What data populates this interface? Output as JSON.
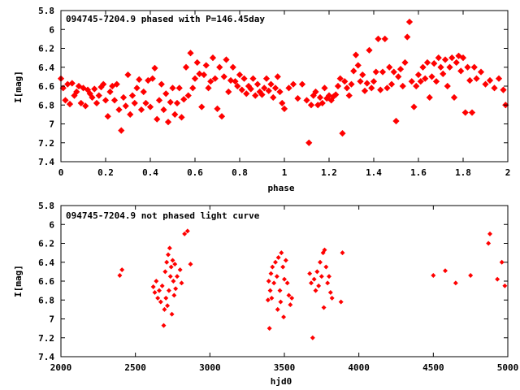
{
  "chart_data": [
    {
      "type": "scatter",
      "title": "094745-7204.9 phased with P=146.45day",
      "xlabel": "phase",
      "ylabel": "I[mag]",
      "xlim": [
        0,
        2
      ],
      "ylim": [
        7.4,
        5.8
      ],
      "y_inverted": true,
      "xticks": [
        "0",
        "0.2",
        "0.4",
        "0.6",
        "0.8",
        "1",
        "1.2",
        "1.4",
        "1.6",
        "1.8",
        "2"
      ],
      "yticks": [
        "5.8",
        "6",
        "6.2",
        "6.4",
        "6.6",
        "6.8",
        "7",
        "7.2",
        "7.4"
      ],
      "grid": false,
      "marker_color": "#ff0000",
      "series": [
        {
          "points": [
            [
              0.0,
              6.52
            ],
            [
              0.01,
              6.62
            ],
            [
              0.02,
              6.75
            ],
            [
              0.03,
              6.58
            ],
            [
              0.04,
              6.79
            ],
            [
              0.05,
              6.57
            ],
            [
              0.06,
              6.7
            ],
            [
              0.07,
              6.66
            ],
            [
              0.08,
              6.6
            ],
            [
              0.09,
              6.78
            ],
            [
              0.1,
              6.62
            ],
            [
              0.11,
              6.81
            ],
            [
              0.12,
              6.64
            ],
            [
              0.13,
              6.68
            ],
            [
              0.14,
              6.72
            ],
            [
              0.15,
              6.63
            ],
            [
              0.16,
              6.78
            ],
            [
              0.17,
              6.7
            ],
            [
              0.18,
              6.61
            ],
            [
              0.19,
              6.58
            ],
            [
              0.2,
              6.75
            ],
            [
              0.21,
              6.92
            ],
            [
              0.22,
              6.66
            ],
            [
              0.23,
              6.6
            ],
            [
              0.24,
              6.75
            ],
            [
              0.25,
              6.58
            ],
            [
              0.26,
              6.85
            ],
            [
              0.27,
              7.07
            ],
            [
              0.28,
              6.72
            ],
            [
              0.29,
              6.81
            ],
            [
              0.3,
              6.48
            ],
            [
              0.31,
              6.9
            ],
            [
              0.32,
              6.7
            ],
            [
              0.33,
              6.78
            ],
            [
              0.34,
              6.62
            ],
            [
              0.35,
              6.53
            ],
            [
              0.36,
              6.85
            ],
            [
              0.37,
              6.66
            ],
            [
              0.38,
              6.78
            ],
            [
              0.39,
              6.54
            ],
            [
              0.4,
              6.82
            ],
            [
              0.41,
              6.52
            ],
            [
              0.42,
              6.41
            ],
            [
              0.43,
              6.95
            ],
            [
              0.44,
              6.75
            ],
            [
              0.45,
              6.58
            ],
            [
              0.46,
              6.85
            ],
            [
              0.47,
              6.68
            ],
            [
              0.48,
              6.98
            ],
            [
              0.49,
              6.77
            ],
            [
              0.5,
              6.62
            ],
            [
              0.51,
              6.9
            ],
            [
              0.52,
              6.78
            ],
            [
              0.53,
              6.62
            ],
            [
              0.54,
              6.93
            ],
            [
              0.55,
              6.74
            ],
            [
              0.56,
              6.4
            ],
            [
              0.57,
              6.7
            ],
            [
              0.58,
              6.25
            ],
            [
              0.59,
              6.62
            ],
            [
              0.6,
              6.52
            ],
            [
              0.61,
              6.35
            ],
            [
              0.62,
              6.47
            ],
            [
              0.63,
              6.82
            ],
            [
              0.64,
              6.48
            ],
            [
              0.65,
              6.38
            ],
            [
              0.66,
              6.62
            ],
            [
              0.67,
              6.55
            ],
            [
              0.68,
              6.3
            ],
            [
              0.69,
              6.52
            ],
            [
              0.7,
              6.84
            ],
            [
              0.71,
              6.4
            ],
            [
              0.72,
              6.92
            ],
            [
              0.73,
              6.5
            ],
            [
              0.74,
              6.32
            ],
            [
              0.75,
              6.66
            ],
            [
              0.76,
              6.54
            ],
            [
              0.77,
              6.4
            ],
            [
              0.78,
              6.55
            ],
            [
              0.79,
              6.6
            ],
            [
              0.8,
              6.48
            ],
            [
              0.81,
              6.64
            ],
            [
              0.82,
              6.52
            ],
            [
              0.83,
              6.68
            ],
            [
              0.84,
              6.6
            ],
            [
              0.85,
              6.63
            ],
            [
              0.86,
              6.52
            ],
            [
              0.87,
              6.7
            ],
            [
              0.88,
              6.58
            ],
            [
              0.89,
              6.66
            ],
            [
              0.9,
              6.69
            ],
            [
              0.91,
              6.62
            ],
            [
              0.92,
              6.52
            ],
            [
              0.93,
              6.65
            ],
            [
              0.94,
              6.58
            ],
            [
              0.95,
              6.72
            ],
            [
              0.96,
              6.62
            ],
            [
              0.97,
              6.5
            ],
            [
              0.98,
              6.66
            ],
            [
              0.99,
              6.78
            ],
            [
              1.0,
              6.84
            ],
            [
              1.02,
              6.62
            ],
            [
              1.04,
              6.58
            ],
            [
              1.06,
              6.73
            ],
            [
              1.08,
              6.58
            ],
            [
              1.1,
              6.75
            ],
            [
              1.11,
              7.2
            ],
            [
              1.12,
              6.8
            ],
            [
              1.13,
              6.7
            ],
            [
              1.14,
              6.66
            ],
            [
              1.15,
              6.8
            ],
            [
              1.16,
              6.72
            ],
            [
              1.17,
              6.78
            ],
            [
              1.18,
              6.62
            ],
            [
              1.19,
              6.73
            ],
            [
              1.2,
              6.7
            ],
            [
              1.21,
              6.75
            ],
            [
              1.22,
              6.71
            ],
            [
              1.23,
              6.69
            ],
            [
              1.24,
              6.6
            ],
            [
              1.25,
              6.52
            ],
            [
              1.26,
              7.1
            ],
            [
              1.27,
              6.55
            ],
            [
              1.28,
              6.62
            ],
            [
              1.29,
              6.7
            ],
            [
              1.3,
              6.58
            ],
            [
              1.31,
              6.44
            ],
            [
              1.32,
              6.27
            ],
            [
              1.33,
              6.38
            ],
            [
              1.34,
              6.55
            ],
            [
              1.35,
              6.48
            ],
            [
              1.36,
              6.65
            ],
            [
              1.37,
              6.57
            ],
            [
              1.38,
              6.22
            ],
            [
              1.39,
              6.62
            ],
            [
              1.4,
              6.55
            ],
            [
              1.41,
              6.45
            ],
            [
              1.42,
              6.1
            ],
            [
              1.43,
              6.64
            ],
            [
              1.44,
              6.45
            ],
            [
              1.45,
              6.1
            ],
            [
              1.46,
              6.62
            ],
            [
              1.47,
              6.4
            ],
            [
              1.48,
              6.58
            ],
            [
              1.49,
              6.45
            ],
            [
              1.5,
              6.97
            ],
            [
              1.51,
              6.5
            ],
            [
              1.52,
              6.42
            ],
            [
              1.53,
              6.6
            ],
            [
              1.54,
              6.35
            ],
            [
              1.55,
              6.08
            ],
            [
              1.56,
              5.92
            ],
            [
              1.57,
              6.55
            ],
            [
              1.58,
              6.82
            ],
            [
              1.59,
              6.6
            ],
            [
              1.6,
              6.48
            ],
            [
              1.61,
              6.55
            ],
            [
              1.62,
              6.4
            ],
            [
              1.63,
              6.52
            ],
            [
              1.64,
              6.35
            ],
            [
              1.65,
              6.72
            ],
            [
              1.66,
              6.5
            ],
            [
              1.67,
              6.36
            ],
            [
              1.68,
              6.55
            ],
            [
              1.69,
              6.3
            ],
            [
              1.7,
              6.4
            ],
            [
              1.71,
              6.47
            ],
            [
              1.72,
              6.32
            ],
            [
              1.73,
              6.6
            ],
            [
              1.74,
              6.4
            ],
            [
              1.75,
              6.3
            ],
            [
              1.76,
              6.72
            ],
            [
              1.77,
              6.35
            ],
            [
              1.78,
              6.28
            ],
            [
              1.79,
              6.44
            ],
            [
              1.8,
              6.3
            ],
            [
              1.81,
              6.88
            ],
            [
              1.82,
              6.4
            ],
            [
              1.83,
              6.54
            ],
            [
              1.84,
              6.88
            ],
            [
              1.85,
              6.4
            ],
            [
              1.86,
              6.52
            ],
            [
              1.88,
              6.45
            ],
            [
              1.9,
              6.58
            ],
            [
              1.92,
              6.54
            ],
            [
              1.94,
              6.62
            ],
            [
              1.96,
              6.52
            ],
            [
              1.98,
              6.64
            ],
            [
              1.99,
              6.8
            ]
          ]
        }
      ]
    },
    {
      "type": "scatter",
      "title": "094745-7204.9 not phased light curve",
      "xlabel": "hjd0",
      "ylabel": "I[mag]",
      "xlim": [
        2000,
        5000
      ],
      "ylim": [
        7.4,
        5.8
      ],
      "y_inverted": true,
      "xticks": [
        "2000",
        "2500",
        "3000",
        "3500",
        "4000",
        "4500",
        "5000"
      ],
      "yticks": [
        "5.8",
        "6",
        "6.2",
        "6.4",
        "6.6",
        "6.8",
        "7",
        "7.2",
        "7.4"
      ],
      "grid": false,
      "marker_color": "#ff0000",
      "series": [
        {
          "points": [
            [
              2395,
              6.54
            ],
            [
              2410,
              6.48
            ],
            [
              2620,
              6.66
            ],
            [
              2630,
              6.72
            ],
            [
              2640,
              6.6
            ],
            [
              2650,
              6.78
            ],
            [
              2660,
              6.7
            ],
            [
              2670,
              6.82
            ],
            [
              2680,
              6.65
            ],
            [
              2690,
              7.07
            ],
            [
              2695,
              6.9
            ],
            [
              2700,
              6.5
            ],
            [
              2705,
              6.78
            ],
            [
              2710,
              6.4
            ],
            [
              2715,
              6.86
            ],
            [
              2720,
              6.32
            ],
            [
              2725,
              6.7
            ],
            [
              2730,
              6.25
            ],
            [
              2735,
              6.55
            ],
            [
              2740,
              6.45
            ],
            [
              2745,
              6.95
            ],
            [
              2750,
              6.38
            ],
            [
              2755,
              6.6
            ],
            [
              2760,
              6.75
            ],
            [
              2765,
              6.42
            ],
            [
              2770,
              6.68
            ],
            [
              2780,
              6.55
            ],
            [
              2800,
              6.48
            ],
            [
              2810,
              6.62
            ],
            [
              2830,
              6.1
            ],
            [
              2850,
              6.07
            ],
            [
              2870,
              6.42
            ],
            [
              3390,
              6.8
            ],
            [
              3395,
              6.6
            ],
            [
              3400,
              7.1
            ],
            [
              3405,
              6.7
            ],
            [
              3410,
              6.52
            ],
            [
              3415,
              6.78
            ],
            [
              3420,
              6.45
            ],
            [
              3430,
              6.62
            ],
            [
              3440,
              6.4
            ],
            [
              3450,
              6.55
            ],
            [
              3455,
              6.9
            ],
            [
              3460,
              6.35
            ],
            [
              3470,
              6.7
            ],
            [
              3475,
              6.82
            ],
            [
              3480,
              6.3
            ],
            [
              3490,
              6.45
            ],
            [
              3495,
              6.98
            ],
            [
              3500,
              6.58
            ],
            [
              3510,
              6.38
            ],
            [
              3520,
              6.62
            ],
            [
              3530,
              6.75
            ],
            [
              3540,
              6.85
            ],
            [
              3550,
              6.78
            ],
            [
              3670,
              6.52
            ],
            [
              3680,
              6.62
            ],
            [
              3690,
              7.2
            ],
            [
              3700,
              6.58
            ],
            [
              3710,
              6.7
            ],
            [
              3720,
              6.5
            ],
            [
              3730,
              6.65
            ],
            [
              3740,
              6.4
            ],
            [
              3750,
              6.55
            ],
            [
              3760,
              6.3
            ],
            [
              3765,
              6.88
            ],
            [
              3770,
              6.27
            ],
            [
              3780,
              6.45
            ],
            [
              3790,
              6.62
            ],
            [
              3800,
              6.55
            ],
            [
              3810,
              6.72
            ],
            [
              3820,
              6.78
            ],
            [
              3880,
              6.82
            ],
            [
              3890,
              6.3
            ],
            [
              4500,
              6.54
            ],
            [
              4580,
              6.49
            ],
            [
              4650,
              6.62
            ],
            [
              4750,
              6.54
            ],
            [
              4870,
              6.2
            ],
            [
              4880,
              6.1
            ],
            [
              4930,
              6.58
            ],
            [
              4960,
              6.4
            ],
            [
              4980,
              6.65
            ]
          ]
        }
      ]
    }
  ]
}
